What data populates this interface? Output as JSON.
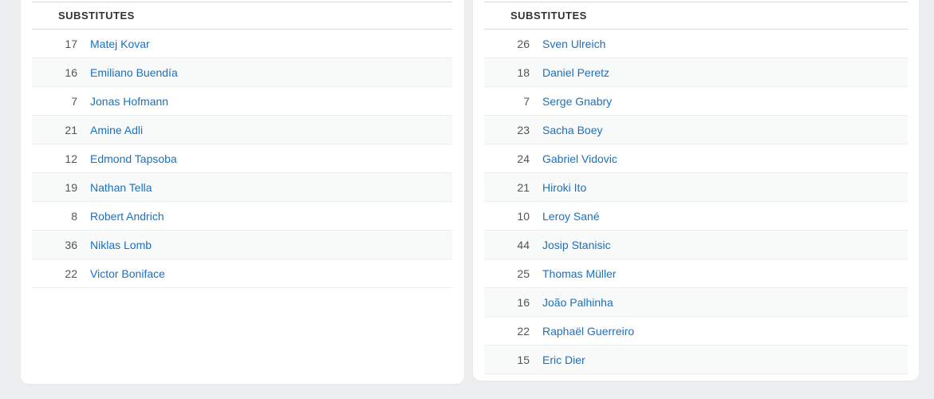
{
  "theme": {
    "page_background": "#eceef0",
    "card_background": "#ffffff",
    "stripe_background": "#f8f9f9",
    "row_border_color": "#ececec",
    "header_border_color": "#d9d9d9",
    "header_text_color": "#333333",
    "number_text_color": "#555555",
    "link_color": "#1971c2"
  },
  "left_panel": {
    "header": "SUBSTITUTES",
    "players": [
      {
        "number": "17",
        "name": "Matej Kovar"
      },
      {
        "number": "16",
        "name": "Emiliano Buendía"
      },
      {
        "number": "7",
        "name": "Jonas Hofmann"
      },
      {
        "number": "21",
        "name": "Amine Adli"
      },
      {
        "number": "12",
        "name": "Edmond Tapsoba"
      },
      {
        "number": "19",
        "name": "Nathan Tella"
      },
      {
        "number": "8",
        "name": "Robert Andrich"
      },
      {
        "number": "36",
        "name": "Niklas Lomb"
      },
      {
        "number": "22",
        "name": "Victor Boniface"
      }
    ]
  },
  "right_panel": {
    "header": "SUBSTITUTES",
    "players": [
      {
        "number": "26",
        "name": "Sven Ulreich"
      },
      {
        "number": "18",
        "name": "Daniel Peretz"
      },
      {
        "number": "7",
        "name": "Serge Gnabry"
      },
      {
        "number": "23",
        "name": "Sacha Boey"
      },
      {
        "number": "24",
        "name": "Gabriel Vidovic"
      },
      {
        "number": "21",
        "name": "Hiroki Ito"
      },
      {
        "number": "10",
        "name": "Leroy Sané"
      },
      {
        "number": "44",
        "name": "Josip Stanisic"
      },
      {
        "number": "25",
        "name": "Thomas Müller"
      },
      {
        "number": "16",
        "name": "João Palhinha"
      },
      {
        "number": "22",
        "name": "Raphaël Guerreiro"
      },
      {
        "number": "15",
        "name": "Eric Dier"
      }
    ]
  }
}
